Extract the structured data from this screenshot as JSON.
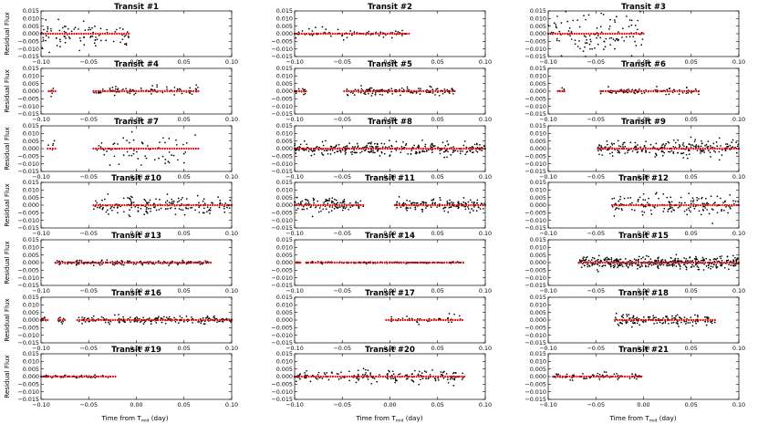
{
  "figure": {
    "ylabel": "Residual Flux",
    "xlabel_main": "Time from T",
    "xlabel_sub": "mid",
    "xlabel_tail": " (day)"
  },
  "axes": {
    "xlim": [
      -0.1,
      0.1
    ],
    "ylim": [
      -0.015,
      0.015
    ],
    "xticks": [
      "−0.10",
      "−0.05",
      "0.00",
      "0.05",
      "0.10"
    ],
    "yticks": [
      "0.015",
      "0.010",
      "0.005",
      "0.000",
      "−0.005",
      "−0.010",
      "−0.015"
    ],
    "point_color": "#000000",
    "model_color": "#e01010"
  },
  "chart_data": [
    {
      "type": "scatter",
      "title": "Transit #1",
      "segments": [
        [
          -0.1,
          -0.008
        ]
      ],
      "scatter": 0.0045,
      "density": 1.6
    },
    {
      "type": "scatter",
      "title": "Transit #2",
      "segments": [
        [
          -0.1,
          0.02
        ]
      ],
      "scatter": 0.0015,
      "density": 0.9
    },
    {
      "type": "scatter",
      "title": "Transit #3",
      "segments": [
        [
          -0.1,
          0.0
        ]
      ],
      "scatter": 0.0065,
      "density": 1.8
    },
    {
      "type": "scatter",
      "title": "Transit #4",
      "segments": [
        [
          -0.092,
          -0.085
        ],
        [
          -0.045,
          0.065
        ]
      ],
      "scatter": 0.0014,
      "density": 1.2
    },
    {
      "type": "scatter",
      "title": "Transit #5",
      "segments": [
        [
          -0.1,
          -0.088
        ],
        [
          -0.048,
          0.068
        ]
      ],
      "scatter": 0.0012,
      "density": 1.8
    },
    {
      "type": "scatter",
      "title": "Transit #6",
      "segments": [
        [
          -0.09,
          -0.083
        ],
        [
          -0.045,
          0.058
        ]
      ],
      "scatter": 0.0012,
      "density": 1.2
    },
    {
      "type": "scatter",
      "title": "Transit #7",
      "segments": [
        [
          -0.093,
          -0.085
        ],
        [
          -0.045,
          0.065
        ]
      ],
      "scatter": 0.0045,
      "density": 1.0
    },
    {
      "type": "scatter",
      "title": "Transit #8",
      "segments": [
        [
          -0.1,
          0.1
        ]
      ],
      "scatter": 0.0022,
      "density": 2.4
    },
    {
      "type": "scatter",
      "title": "Transit #9",
      "segments": [
        [
          -0.048,
          0.1
        ]
      ],
      "scatter": 0.0025,
      "density": 2.4
    },
    {
      "type": "scatter",
      "title": "Transit #10",
      "segments": [
        [
          -0.045,
          0.1
        ]
      ],
      "scatter": 0.0028,
      "density": 2.0
    },
    {
      "type": "scatter",
      "title": "Transit #11",
      "segments": [
        [
          -0.1,
          -0.028
        ],
        [
          0.005,
          0.1
        ]
      ],
      "scatter": 0.0022,
      "density": 2.4
    },
    {
      "type": "scatter",
      "title": "Transit #12",
      "segments": [
        [
          -0.033,
          0.1
        ]
      ],
      "scatter": 0.0035,
      "density": 2.0
    },
    {
      "type": "scatter",
      "title": "Transit #13",
      "segments": [
        [
          -0.085,
          0.078
        ]
      ],
      "scatter": 0.0007,
      "density": 1.6
    },
    {
      "type": "scatter",
      "title": "Transit #14",
      "segments": [
        [
          -0.098,
          -0.094
        ],
        [
          -0.088,
          0.077
        ]
      ],
      "scatter": 0.0003,
      "density": 1.0
    },
    {
      "type": "scatter",
      "title": "Transit #15",
      "segments": [
        [
          -0.068,
          0.1
        ]
      ],
      "scatter": 0.002,
      "density": 4.0
    },
    {
      "type": "scatter",
      "title": "Transit #16",
      "segments": [
        [
          -0.1,
          -0.093
        ],
        [
          -0.082,
          -0.075
        ],
        [
          -0.062,
          0.1
        ]
      ],
      "scatter": 0.0012,
      "density": 1.8
    },
    {
      "type": "scatter",
      "title": "Transit #17",
      "segments": [
        [
          -0.004,
          0.076
        ]
      ],
      "scatter": 0.0015,
      "density": 0.7
    },
    {
      "type": "scatter",
      "title": "Transit #18",
      "segments": [
        [
          -0.03,
          0.075
        ]
      ],
      "scatter": 0.002,
      "density": 2.2
    },
    {
      "type": "scatter",
      "title": "Transit #19",
      "segments": [
        [
          -0.1,
          -0.022
        ]
      ],
      "scatter": 0.0006,
      "density": 1.0
    },
    {
      "type": "scatter",
      "title": "Transit #20",
      "segments": [
        [
          -0.1,
          0.078
        ]
      ],
      "scatter": 0.0022,
      "density": 1.6
    },
    {
      "type": "scatter",
      "title": "Transit #21",
      "segments": [
        [
          -0.095,
          -0.002
        ]
      ],
      "scatter": 0.0012,
      "density": 1.2
    }
  ]
}
